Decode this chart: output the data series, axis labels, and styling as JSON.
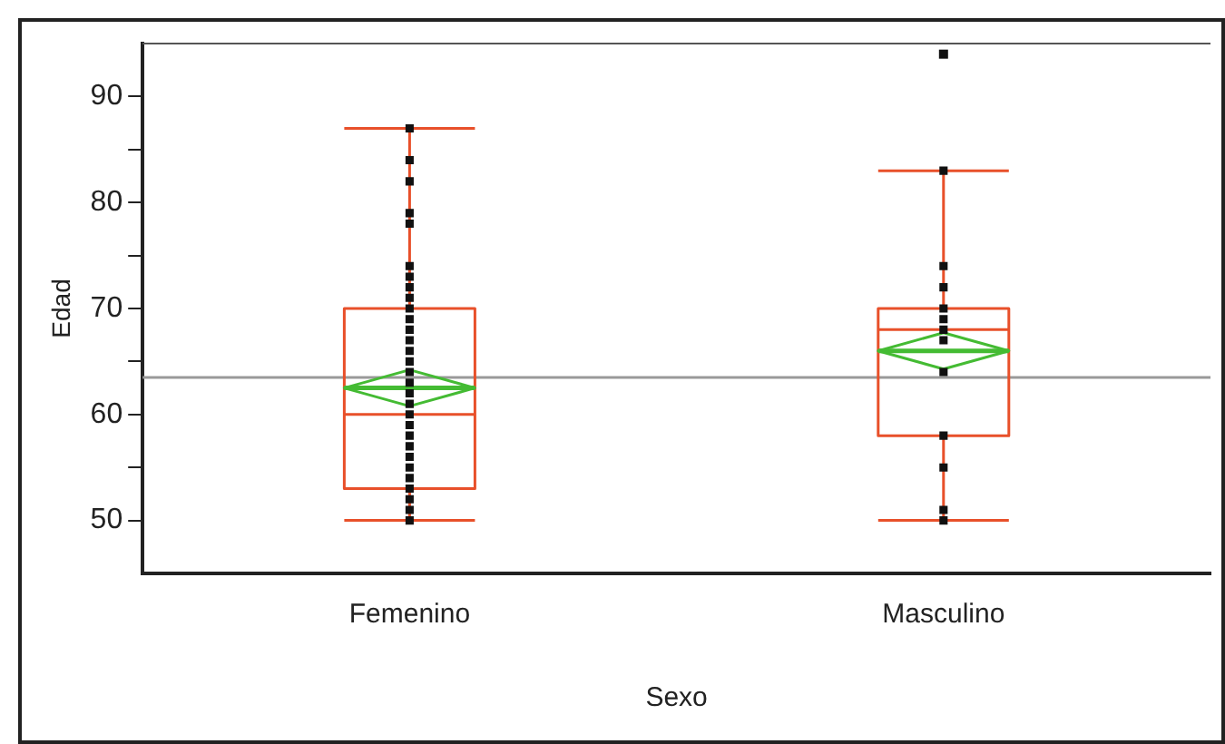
{
  "chart_data": {
    "type": "box",
    "xlabel": "Sexo",
    "ylabel": "Edad",
    "categories": [
      "Femenino",
      "Masculino"
    ],
    "color": "#e8502a",
    "boxes": [
      {
        "low": 50,
        "q1": 53,
        "median": 60,
        "q3": 70,
        "high": 87,
        "mean": 62.5
      },
      {
        "low": 50,
        "q1": 58,
        "median": 68,
        "q3": 70,
        "high": 83,
        "mean": 66,
        "outliers": [
          94
        ]
      }
    ],
    "series": [
      {
        "type": "scatter",
        "color": "#111111",
        "x": [
          "Femenino",
          "Femenino",
          "Femenino",
          "Femenino",
          "Femenino",
          "Femenino",
          "Femenino",
          "Femenino",
          "Femenino",
          "Femenino",
          "Femenino",
          "Femenino",
          "Femenino",
          "Femenino",
          "Femenino",
          "Femenino",
          "Femenino",
          "Femenino",
          "Femenino",
          "Femenino",
          "Femenino",
          "Femenino",
          "Femenino",
          "Femenino",
          "Femenino",
          "Femenino",
          "Femenino",
          "Femenino",
          "Femenino",
          "Femenino",
          "Masculino",
          "Masculino",
          "Masculino",
          "Masculino",
          "Masculino",
          "Masculino",
          "Masculino",
          "Masculino",
          "Masculino",
          "Masculino",
          "Masculino",
          "Masculino"
        ],
        "values": [
          87,
          84,
          82,
          79,
          78,
          74,
          73,
          72,
          71,
          70,
          69,
          68,
          67,
          66,
          65,
          64,
          63,
          62,
          61,
          60,
          59,
          58,
          57,
          56,
          55,
          54,
          53,
          52,
          51,
          50,
          83,
          74,
          72,
          70,
          69,
          68,
          67,
          64,
          58,
          55,
          51,
          50
        ]
      }
    ],
    "ref_lines": [
      {
        "axis": "y",
        "value": 63.5,
        "color": "#999999"
      }
    ],
    "ylim": [
      45,
      95
    ],
    "yticks": [
      50,
      {
        "value": 55,
        "label": null
      },
      60,
      {
        "value": 65,
        "label": null
      },
      70,
      {
        "value": 75,
        "label": null
      },
      80,
      {
        "value": 85,
        "label": null
      },
      90
    ],
    "grid": false,
    "legend": false,
    "marker": "square"
  }
}
